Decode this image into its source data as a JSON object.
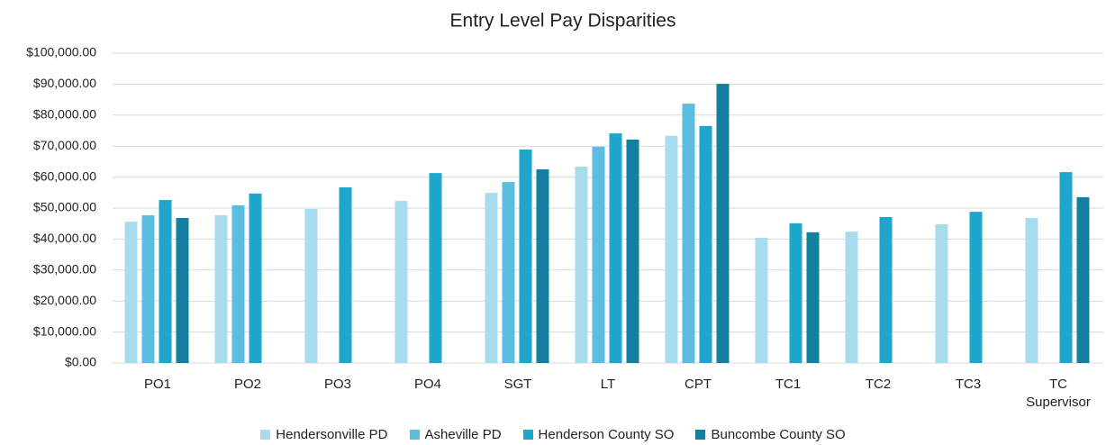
{
  "chart_data": {
    "type": "bar",
    "title": "Entry Level Pay Disparities",
    "categories": [
      "PO1",
      "PO2",
      "PO3",
      "PO4",
      "SGT",
      "LT",
      "CPT",
      "TC1",
      "TC2",
      "TC3",
      "TC Supervisor"
    ],
    "series": [
      {
        "name": "Hendersonville PD",
        "color": "#a9dbef",
        "values": [
          45600,
          47700,
          49700,
          52300,
          54900,
          63400,
          73300,
          40400,
          42400,
          44800,
          46800
        ]
      },
      {
        "name": "Asheville PD",
        "color": "#5bbde0",
        "values": [
          47700,
          50900,
          null,
          null,
          58400,
          69800,
          83700,
          null,
          null,
          null,
          null
        ]
      },
      {
        "name": "Henderson County SO",
        "color": "#1ea6cc",
        "values": [
          52600,
          54700,
          56700,
          61300,
          68900,
          74100,
          76500,
          45100,
          47100,
          48800,
          61600
        ]
      },
      {
        "name": "Buncombe County SO",
        "color": "#157f9f",
        "values": [
          46800,
          null,
          null,
          null,
          62500,
          72100,
          90100,
          42200,
          null,
          null,
          53500
        ]
      }
    ],
    "ylim": [
      0,
      100000
    ],
    "yticks": [
      {
        "value": 0,
        "label": "$0.00"
      },
      {
        "value": 10000,
        "label": "$10,000.00"
      },
      {
        "value": 20000,
        "label": "$20,000.00"
      },
      {
        "value": 30000,
        "label": "$30,000.00"
      },
      {
        "value": 40000,
        "label": "$40,000.00"
      },
      {
        "value": 50000,
        "label": "$50,000.00"
      },
      {
        "value": 60000,
        "label": "$60,000.00"
      },
      {
        "value": 70000,
        "label": "$70,000.00"
      },
      {
        "value": 80000,
        "label": "$80,000.00"
      },
      {
        "value": 90000,
        "label": "$90,000.00"
      },
      {
        "value": 100000,
        "label": "$100,000.00"
      }
    ],
    "grid": true,
    "legend": "bottom"
  }
}
